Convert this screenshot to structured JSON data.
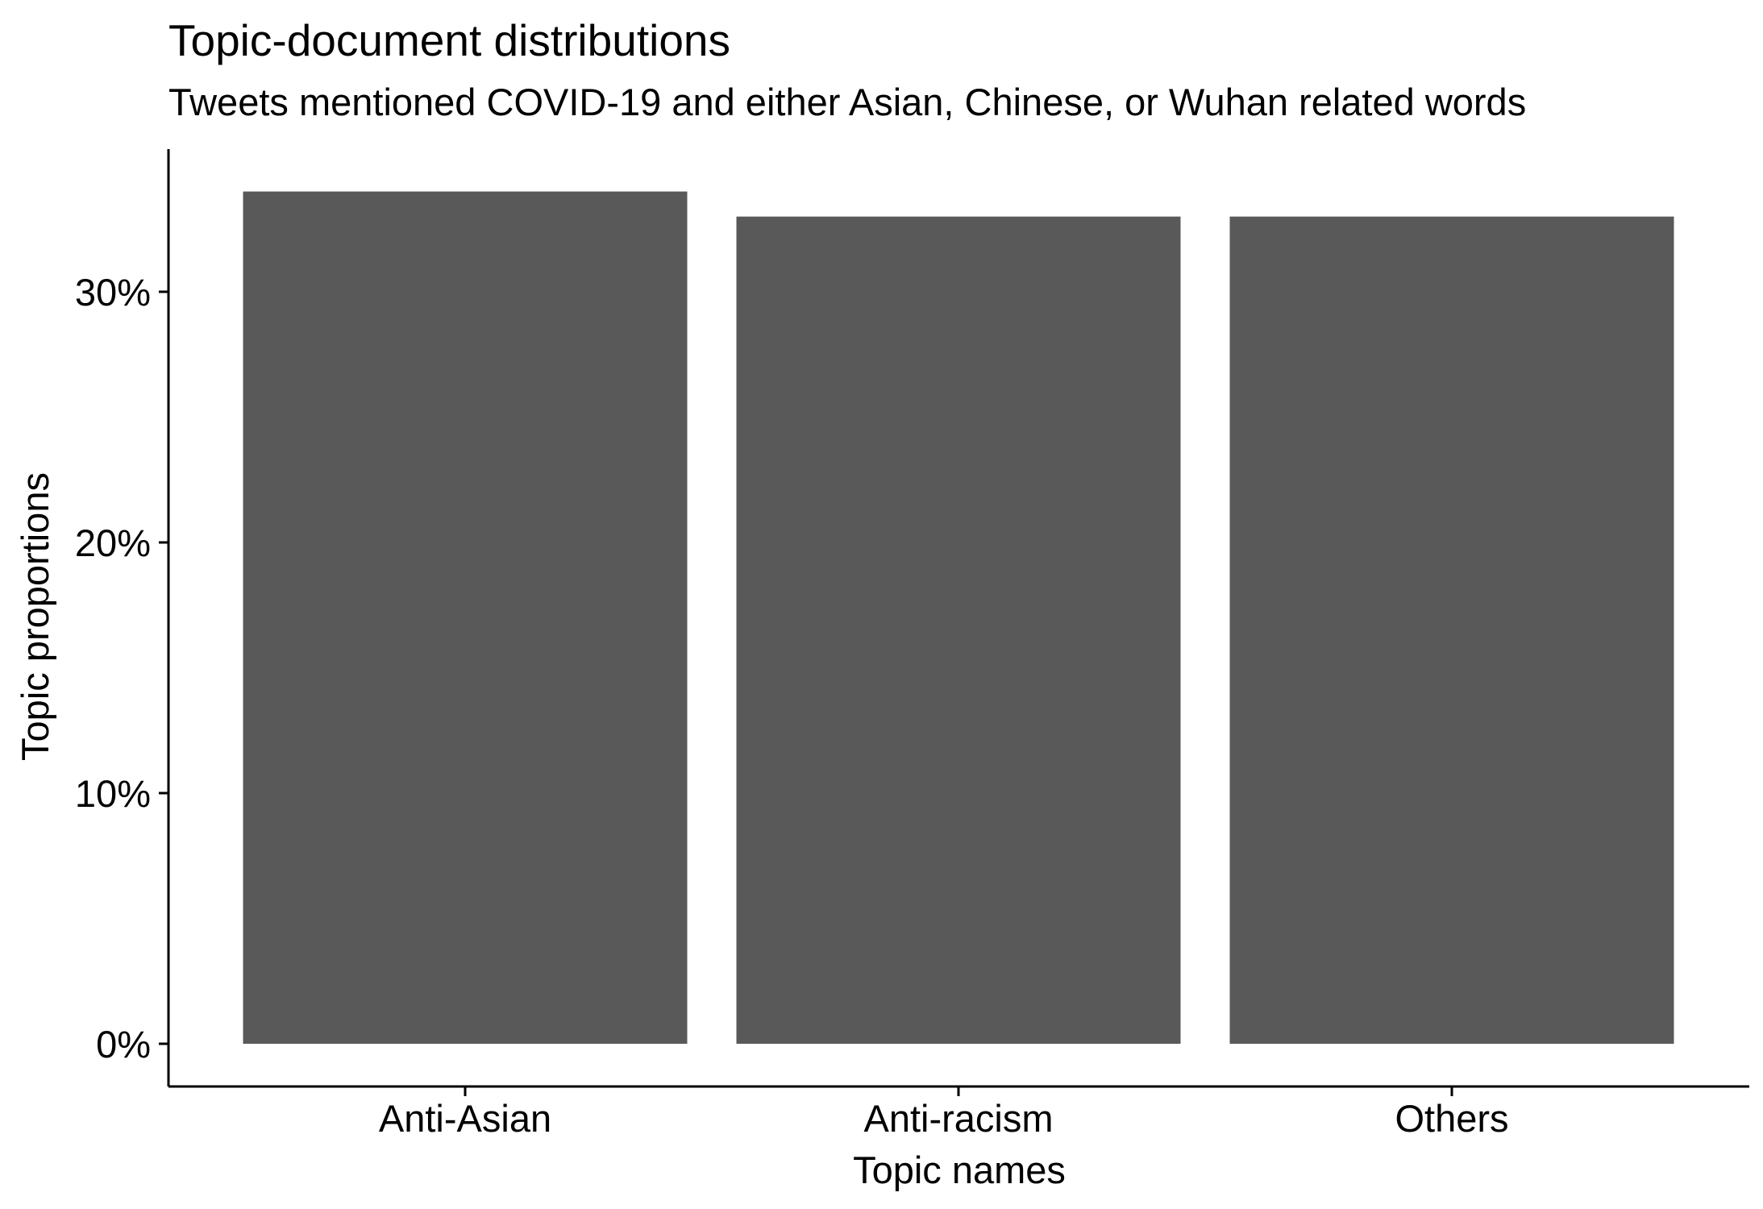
{
  "chart_data": {
    "type": "bar",
    "title": "Topic-document distributions",
    "subtitle": "Tweets mentioned COVID-19 and either Asian, Chinese, or Wuhan related words",
    "xlabel": "Topic names",
    "ylabel": "Topic proportions",
    "categories": [
      "Anti-Asian",
      "Anti-racism",
      "Others"
    ],
    "values": [
      0.34,
      0.33,
      0.33
    ],
    "ylim": [
      -0.0155,
      0.3565
    ],
    "yticks": [
      0,
      0.1,
      0.2,
      0.3
    ],
    "ytick_labels": [
      "0%",
      "10%",
      "20%",
      "30%"
    ],
    "grid": false,
    "legend": "none",
    "colors": {
      "bar": "#595959",
      "axis": "#000000",
      "background": "#ffffff"
    }
  }
}
